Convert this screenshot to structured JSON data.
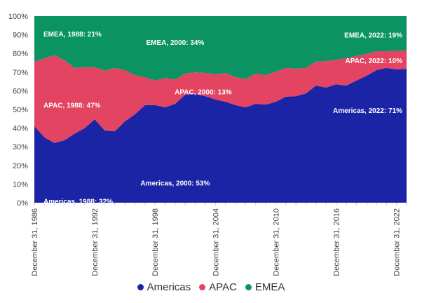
{
  "chart_data": {
    "type": "area",
    "stacked": true,
    "title": "",
    "xlabel": "",
    "ylabel": "",
    "ylim": [
      0,
      100
    ],
    "yticks": [
      "0%",
      "10%",
      "20%",
      "30%",
      "40%",
      "50%",
      "60%",
      "70%",
      "80%",
      "90%",
      "100%"
    ],
    "xlim": [
      1986,
      2023
    ],
    "xtick_labels": [
      {
        "year": 1986,
        "label": "December 31, 1986"
      },
      {
        "year": 1992,
        "label": "December 31, 1992"
      },
      {
        "year": 1998,
        "label": "December 31, 1998"
      },
      {
        "year": 2004,
        "label": "December 31, 2004"
      },
      {
        "year": 2010,
        "label": "December 31, 2010"
      },
      {
        "year": 2016,
        "label": "December 31, 2016"
      },
      {
        "year": 2022,
        "label": "December 31, 2022"
      }
    ],
    "x": [
      1986,
      1987,
      1988,
      1989,
      1990,
      1991,
      1992,
      1993,
      1994,
      1995,
      1996,
      1997,
      1998,
      1999,
      2000,
      2001,
      2002,
      2003,
      2004,
      2005,
      2006,
      2007,
      2008,
      2009,
      2010,
      2011,
      2012,
      2013,
      2014,
      2015,
      2016,
      2017,
      2018,
      2019,
      2020,
      2021,
      2022,
      2023
    ],
    "series": [
      {
        "name": "Americas",
        "color": "#1c24a6",
        "values": [
          41,
          35,
          32,
          33.5,
          37,
          40,
          44.7,
          38.7,
          38.3,
          43.6,
          47.4,
          52.3,
          52.3,
          51.1,
          53,
          57.9,
          58.3,
          57.1,
          55.3,
          54.1,
          52.3,
          51.1,
          53,
          52.6,
          54.1,
          56.8,
          57.1,
          58.6,
          62.8,
          61.7,
          63.5,
          62.8,
          65.4,
          68,
          71,
          72.2,
          71.4,
          71.8
        ]
      },
      {
        "name": "APAC",
        "color": "#e24462",
        "values": [
          34.6,
          42.4,
          47,
          42.8,
          35.2,
          32.6,
          27.9,
          32,
          33.9,
          27.4,
          21,
          15,
          13.1,
          15.8,
          13,
          11.3,
          11.6,
          12.4,
          13.5,
          15.4,
          15,
          15.1,
          16.2,
          15.8,
          16.2,
          15.4,
          14.7,
          13.6,
          12.8,
          14.2,
          13.2,
          14.6,
          13.2,
          11.7,
          10.2,
          9,
          10,
          9.8
        ]
      },
      {
        "name": "EMEA",
        "color": "#0b9462",
        "values": [
          24.4,
          22.6,
          21,
          23.7,
          27.8,
          27.4,
          27.4,
          29.3,
          27.8,
          29,
          31.6,
          32.7,
          34.6,
          33.1,
          34,
          30.8,
          30.1,
          30.5,
          31.2,
          30.5,
          32.7,
          33.8,
          30.8,
          31.6,
          29.7,
          27.8,
          28.2,
          27.8,
          24.4,
          24.1,
          23.3,
          22.6,
          21.4,
          20.3,
          18.8,
          18.8,
          18.6,
          18.4
        ]
      }
    ],
    "annotations": [
      {
        "series": "EMEA",
        "year": 1988,
        "text": "EMEA, 1988: 21%"
      },
      {
        "series": "APAC",
        "year": 1988,
        "text": "APAC, 1988: 47%"
      },
      {
        "series": "Americas",
        "year": 1988,
        "text": "Americas, 1988: 32%"
      },
      {
        "series": "EMEA",
        "year": 2000,
        "text": "EMEA, 2000: 34%"
      },
      {
        "series": "APAC",
        "year": 2000,
        "text": "APAC, 2000: 13%"
      },
      {
        "series": "Americas",
        "year": 2000,
        "text": "Americas, 2000: 53%"
      },
      {
        "series": "EMEA",
        "year": 2022,
        "text": "EMEA, 2022: 19%"
      },
      {
        "series": "APAC",
        "year": 2022,
        "text": "APAC, 2022: 10%"
      },
      {
        "series": "Americas",
        "year": 2022,
        "text": "Americas, 2022: 71%"
      }
    ],
    "legend": {
      "position": "bottom",
      "entries": [
        "Americas",
        "APAC",
        "EMEA"
      ]
    },
    "grid": false
  }
}
